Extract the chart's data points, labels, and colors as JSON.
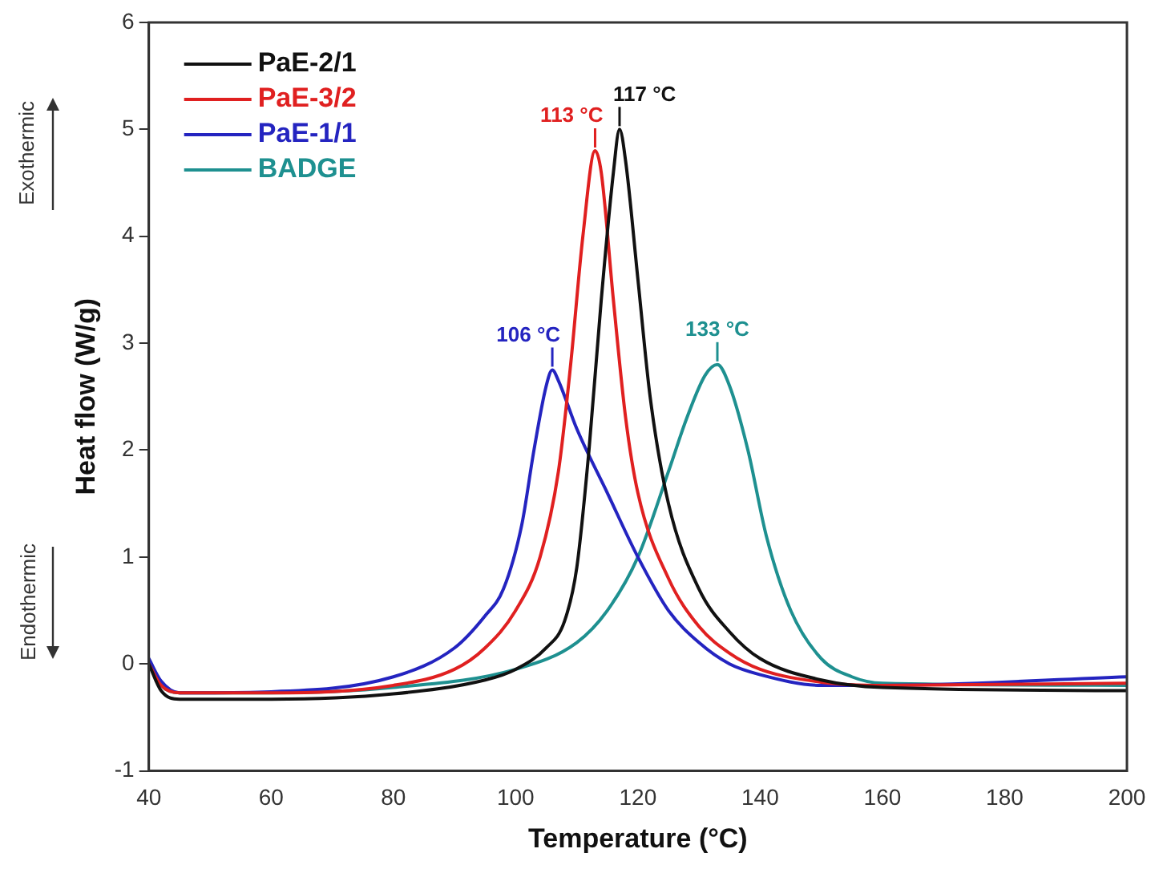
{
  "chart_data": {
    "type": "line",
    "xlabel": "Temperature (°C)",
    "ylabel": "Heat flow (W/g)",
    "xlim": [
      40,
      200
    ],
    "xticks": [
      40,
      60,
      80,
      100,
      120,
      140,
      160,
      180,
      200
    ],
    "ylim": [
      -1,
      6
    ],
    "yticks": [
      -1,
      0,
      1,
      2,
      3,
      4,
      5,
      6
    ],
    "grid": false,
    "legend": "top left",
    "marker": "none",
    "line_style": "solid",
    "series": [
      {
        "name": "PaE-2/1",
        "color": "#111111",
        "x": [
          40,
          42,
          45,
          60,
          80,
          95,
          100,
          105,
          108,
          110,
          112,
          114,
          116,
          117,
          118,
          120,
          122,
          125,
          130,
          135,
          140,
          150,
          160,
          200
        ],
        "values": [
          0,
          -0.25,
          -0.33,
          -0.33,
          -0.28,
          -0.15,
          -0.05,
          0.15,
          0.4,
          0.9,
          2.0,
          3.4,
          4.6,
          5.0,
          4.7,
          3.6,
          2.5,
          1.5,
          0.7,
          0.3,
          0.05,
          -0.15,
          -0.22,
          -0.25
        ]
      },
      {
        "name": "PaE-3/2",
        "color": "#e02020",
        "x": [
          40,
          42,
          45,
          60,
          80,
          90,
          95,
          100,
          104,
          107,
          109,
          111,
          113,
          114,
          116,
          118,
          120,
          125,
          130,
          135,
          140,
          150,
          160,
          200
        ],
        "values": [
          0,
          -0.2,
          -0.27,
          -0.27,
          -0.2,
          -0.05,
          0.15,
          0.5,
          1.0,
          1.8,
          2.8,
          4.0,
          4.8,
          4.6,
          3.4,
          2.3,
          1.6,
          0.8,
          0.35,
          0.1,
          -0.05,
          -0.17,
          -0.2,
          -0.18
        ]
      },
      {
        "name": "PaE-1/1",
        "color": "#2424c0",
        "x": [
          40,
          42,
          45,
          60,
          80,
          90,
          95,
          98,
          101,
          103,
          105,
          106,
          107,
          110,
          115,
          120,
          125,
          130,
          135,
          140,
          150,
          160,
          200
        ],
        "values": [
          0.05,
          -0.16,
          -0.27,
          -0.26,
          -0.12,
          0.15,
          0.45,
          0.7,
          1.3,
          2.0,
          2.6,
          2.75,
          2.65,
          2.2,
          1.6,
          1.0,
          0.5,
          0.2,
          0.0,
          -0.1,
          -0.2,
          -0.2,
          -0.12
        ]
      },
      {
        "name": "BADGE",
        "color": "#1e9090",
        "x": [
          40,
          42,
          45,
          60,
          80,
          100,
          110,
          115,
          120,
          125,
          128,
          131,
          133,
          135,
          138,
          141,
          145,
          150,
          155,
          160,
          200
        ],
        "values": [
          0,
          -0.2,
          -0.27,
          -0.27,
          -0.22,
          -0.05,
          0.2,
          0.5,
          1.0,
          1.8,
          2.3,
          2.7,
          2.8,
          2.6,
          2.0,
          1.2,
          0.5,
          0.05,
          -0.12,
          -0.18,
          -0.2
        ]
      }
    ],
    "annotations": [
      {
        "text": "117 °C",
        "x": 117,
        "y": 5.0
      },
      {
        "text": "113 °C",
        "x": 113,
        "y": 4.8
      },
      {
        "text": "106 °C",
        "x": 106,
        "y": 2.75
      },
      {
        "text": "133 °C",
        "x": 133,
        "y": 2.8
      },
      "Exothermic",
      "Endothermic"
    ]
  }
}
